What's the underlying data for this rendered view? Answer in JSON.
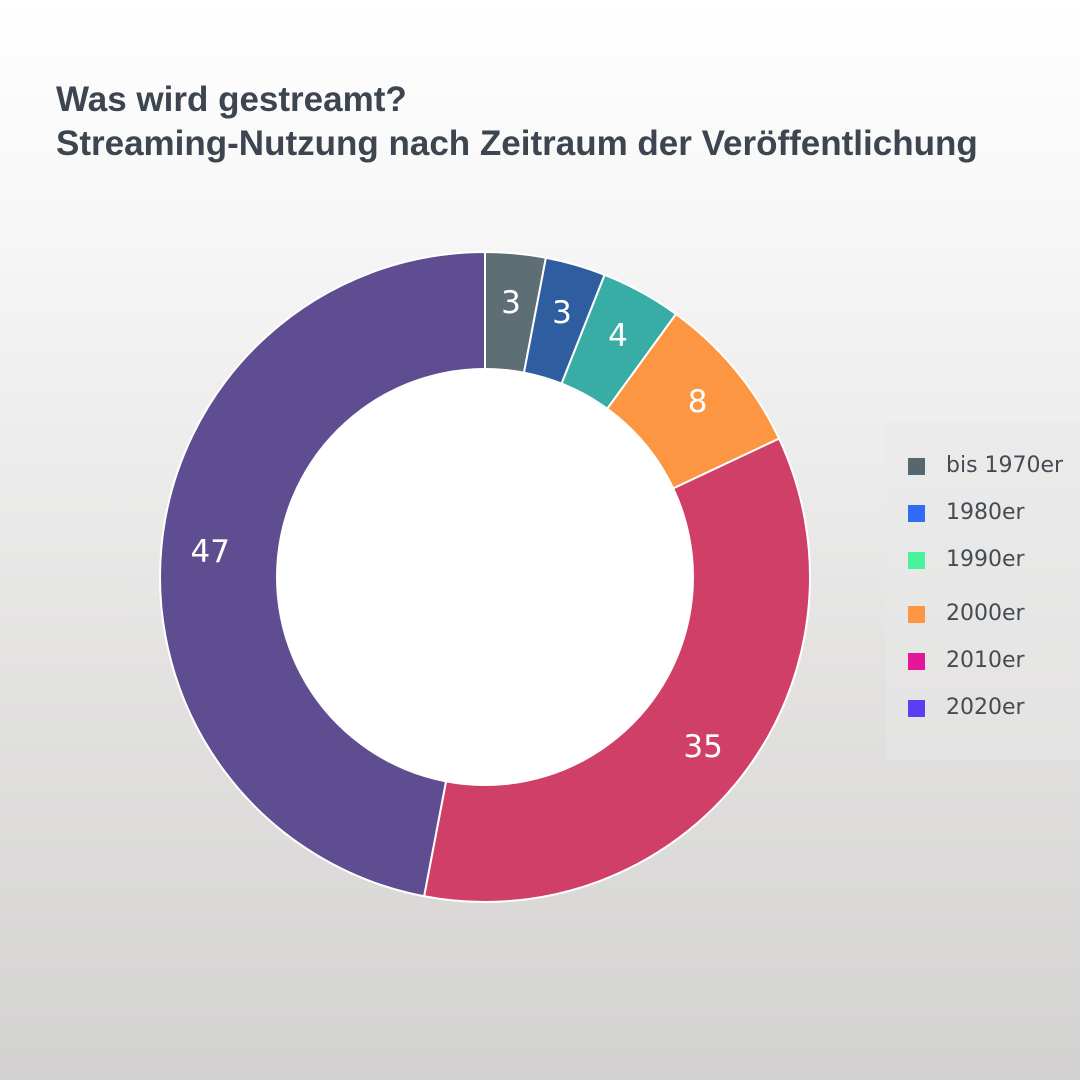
{
  "chart_data": {
    "type": "pie",
    "title": "Was wird gestreamt?",
    "subtitle": "Streaming-Nutzung nach Zeitraum der Veröffentlichung",
    "donut": true,
    "legend_position": "right",
    "slices": [
      {
        "label": "bis 1970er",
        "value": 3,
        "display": "3",
        "color": "#5e6e75",
        "legend_color": "#56676f"
      },
      {
        "label": "1980er",
        "value": 3,
        "display": "3",
        "color": "#2e5e9f",
        "legend_color": "#2f6cf7"
      },
      {
        "label": "1990er",
        "value": 4,
        "display": "4",
        "color": "#38ada5",
        "legend_color": "#4af29d"
      },
      {
        "label": "2000er",
        "value": 8,
        "display": "8",
        "color": "#fc9642",
        "legend_color": "#fc9642"
      },
      {
        "label": "2010er",
        "value": 35,
        "display": "35",
        "color": "#d03f68",
        "legend_color": "#e3179a"
      },
      {
        "label": "2020er",
        "value": 47,
        "display": "47",
        "color": "#5f4d91",
        "legend_color": "#5a3ef2"
      }
    ]
  }
}
